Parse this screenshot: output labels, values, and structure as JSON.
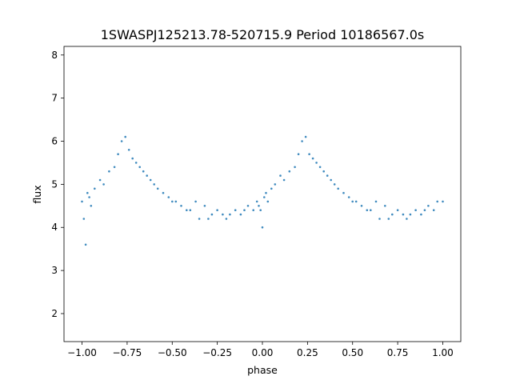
{
  "chart_data": {
    "type": "scatter",
    "title": "1SWASPJ125213.78-520715.9 Period 10186567.0s",
    "xlabel": "phase",
    "ylabel": "flux",
    "xlim": [
      -1.1,
      1.1
    ],
    "ylim": [
      1.35,
      8.2
    ],
    "x_ticks": [
      -1.0,
      -0.75,
      -0.5,
      -0.25,
      0.0,
      0.25,
      0.5,
      0.75,
      1.0
    ],
    "x_tick_labels": [
      "−1.00",
      "−0.75",
      "−0.50",
      "−0.25",
      "0.00",
      "0.25",
      "0.50",
      "0.75",
      "1.00"
    ],
    "y_ticks": [
      2,
      3,
      4,
      5,
      6,
      7,
      8
    ],
    "y_tick_labels": [
      "2",
      "3",
      "4",
      "5",
      "6",
      "7",
      "8"
    ],
    "grid": false,
    "marker_color": "#1f77b4",
    "series": [
      {
        "x": [
          -1.0,
          -0.99,
          -0.98,
          -0.97,
          -0.96,
          -0.95,
          -0.93,
          -0.9,
          -0.88,
          -0.85,
          -0.82,
          -0.8,
          -0.78,
          -0.76,
          -0.74,
          -0.72,
          -0.7,
          -0.68,
          -0.66,
          -0.64,
          -0.62,
          -0.6,
          -0.58,
          -0.55,
          -0.52,
          -0.5,
          -0.48,
          -0.45,
          -0.42,
          -0.4,
          -0.37,
          -0.35,
          -0.32,
          -0.3,
          -0.28,
          -0.25,
          -0.22,
          -0.2,
          -0.18,
          -0.15,
          -0.12,
          -0.1,
          -0.08,
          -0.05,
          -0.03,
          -0.02,
          -0.01,
          0.0,
          0.01,
          0.02,
          0.03,
          0.05,
          0.07,
          0.1,
          0.12,
          0.15,
          0.18,
          0.2,
          0.22,
          0.24,
          0.26,
          0.28,
          0.3,
          0.32,
          0.34,
          0.36,
          0.38,
          0.4,
          0.42,
          0.45,
          0.48,
          0.5,
          0.52,
          0.55,
          0.58,
          0.6,
          0.63,
          0.65,
          0.68,
          0.7,
          0.72,
          0.75,
          0.78,
          0.8,
          0.82,
          0.85,
          0.88,
          0.9,
          0.92,
          0.95,
          0.97,
          1.0
        ],
        "y": [
          4.6,
          4.2,
          3.6,
          4.8,
          4.7,
          4.5,
          4.9,
          5.1,
          5.0,
          5.3,
          5.4,
          5.7,
          6.0,
          6.1,
          5.8,
          5.6,
          5.5,
          5.4,
          5.3,
          5.2,
          5.1,
          5.0,
          4.9,
          4.8,
          4.7,
          4.6,
          4.6,
          4.5,
          4.4,
          4.4,
          4.6,
          4.2,
          4.5,
          4.2,
          4.3,
          4.4,
          4.3,
          4.2,
          4.3,
          4.4,
          4.3,
          4.4,
          4.5,
          4.4,
          4.6,
          4.5,
          4.4,
          4.0,
          4.7,
          4.8,
          4.6,
          4.9,
          5.0,
          5.2,
          5.1,
          5.3,
          5.4,
          5.7,
          6.0,
          6.1,
          5.7,
          5.6,
          5.5,
          5.4,
          5.3,
          5.2,
          5.1,
          5.0,
          4.9,
          4.8,
          4.7,
          4.6,
          4.6,
          4.5,
          4.4,
          4.4,
          4.6,
          4.2,
          4.5,
          4.2,
          4.3,
          4.4,
          4.3,
          4.2,
          4.3,
          4.4,
          4.3,
          4.4,
          4.5,
          4.4,
          4.6,
          4.6
        ]
      }
    ]
  }
}
